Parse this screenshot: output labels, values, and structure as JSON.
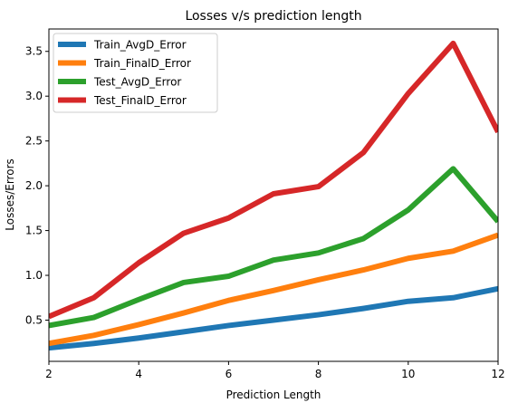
{
  "chart_data": {
    "type": "line",
    "title": "Losses v/s prediction length",
    "xlabel": "Prediction Length",
    "ylabel": "Losses/Errors",
    "xlim": [
      2,
      12
    ],
    "ylim": [
      0.04,
      3.75
    ],
    "xticks": [
      2,
      4,
      6,
      8,
      10,
      12
    ],
    "xtick_labels": [
      "2",
      "4",
      "6",
      "8",
      "10",
      "12"
    ],
    "yticks": [
      0.5,
      1.0,
      1.5,
      2.0,
      2.5,
      3.0,
      3.5
    ],
    "ytick_labels": [
      "0.5",
      "1.0",
      "1.5",
      "2.0",
      "2.5",
      "3.0",
      "3.5"
    ],
    "grid": false,
    "legend_position": "top-left",
    "x": [
      2,
      3,
      4,
      5,
      6,
      7,
      8,
      9,
      10,
      11,
      12
    ],
    "series": [
      {
        "name": "Train_AvgD_Error",
        "color": "#1f77b4",
        "values": [
          0.19,
          0.24,
          0.3,
          0.37,
          0.44,
          0.5,
          0.56,
          0.63,
          0.71,
          0.75,
          0.85
        ]
      },
      {
        "name": "Train_FinalD_Error",
        "color": "#ff7f0e",
        "values": [
          0.24,
          0.33,
          0.45,
          0.58,
          0.72,
          0.83,
          0.95,
          1.06,
          1.19,
          1.27,
          1.45
        ]
      },
      {
        "name": "Test_AvgD_Error",
        "color": "#2ca02c",
        "values": [
          0.44,
          0.53,
          0.73,
          0.92,
          0.99,
          1.17,
          1.25,
          1.41,
          1.73,
          2.19,
          1.6
        ]
      },
      {
        "name": "Test_FinalD_Error",
        "color": "#d62728",
        "values": [
          0.54,
          0.75,
          1.14,
          1.47,
          1.64,
          1.91,
          1.99,
          2.37,
          3.03,
          3.59,
          2.6
        ]
      }
    ]
  }
}
